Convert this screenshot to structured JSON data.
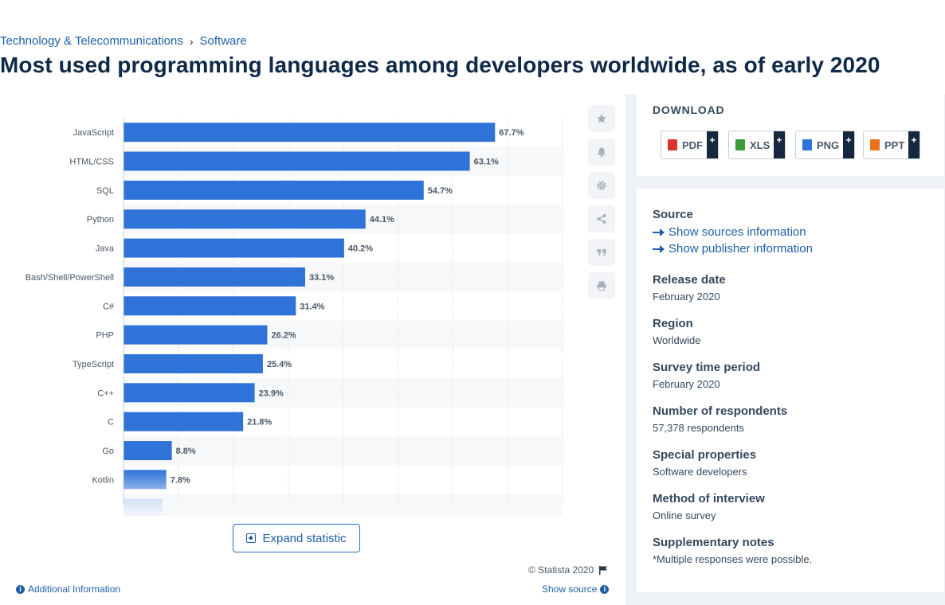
{
  "breadcrumb": {
    "category": "Technology & Telecommunications",
    "separator": "›",
    "subcategory": "Software"
  },
  "page_title": "Most used programming languages among developers worldwide, as of early 2020",
  "tools": [
    {
      "name": "favorite-star-icon"
    },
    {
      "name": "notification-bell-icon"
    },
    {
      "name": "settings-gear-icon"
    },
    {
      "name": "share-icon"
    },
    {
      "name": "quote-icon"
    },
    {
      "name": "print-icon"
    }
  ],
  "chart_data": {
    "type": "bar",
    "orientation": "horizontal",
    "categories": [
      "JavaScript",
      "HTML/CSS",
      "SQL",
      "Python",
      "Java",
      "Bash/Shell/PowerShell",
      "C#",
      "PHP",
      "TypeScript",
      "C++",
      "C",
      "Go",
      "Kotlin"
    ],
    "values": [
      67.7,
      63.1,
      54.7,
      44.1,
      40.2,
      33.1,
      31.4,
      26.2,
      25.4,
      23.9,
      21.8,
      8.8,
      7.8
    ],
    "value_labels": [
      "67.7%",
      "63.1%",
      "54.7%",
      "44.1%",
      "40.2%",
      "33.1%",
      "31.4%",
      "26.2%",
      "25.4%",
      "23.9%",
      "21.8%",
      "8.8%",
      "7.8%"
    ],
    "xlim": [
      0,
      80
    ],
    "grid": true,
    "bar_color": "#2f72d8",
    "truncated_below": true
  },
  "expand_label": "Expand statistic",
  "copyright": "© Statista 2020",
  "additional_info": "Additional Information",
  "show_source": "Show source",
  "download": {
    "title": "DOWNLOAD",
    "buttons": [
      {
        "label": "PDF",
        "icon_color": "#d9342b",
        "icon": "pdf-file-icon"
      },
      {
        "label": "XLS",
        "icon_color": "#3a9a3a",
        "icon": "xls-file-icon"
      },
      {
        "label": "PNG",
        "icon_color": "#2f72d8",
        "icon": "png-file-icon"
      },
      {
        "label": "PPT",
        "icon_color": "#e8731f",
        "icon": "ppt-file-icon"
      }
    ],
    "plus": "+"
  },
  "info": {
    "source_label": "Source",
    "show_sources": "Show sources information",
    "show_publisher": "Show publisher information",
    "release_label": "Release date",
    "release_value": "February 2020",
    "region_label": "Region",
    "region_value": "Worldwide",
    "survey_label": "Survey time period",
    "survey_value": "February 2020",
    "respondents_label": "Number of respondents",
    "respondents_value": "57,378 respondents",
    "special_label": "Special properties",
    "special_value": "Software developers",
    "method_label": "Method of interview",
    "method_value": "Online survey",
    "notes_label": "Supplementary notes",
    "notes_value": "*Multiple responses were possible."
  }
}
